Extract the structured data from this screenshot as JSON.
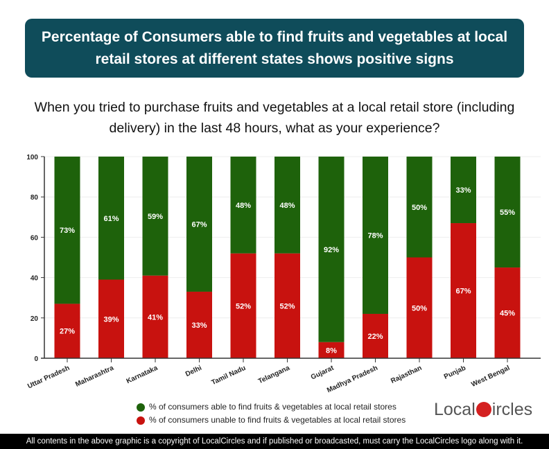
{
  "title": "Percentage of Consumers able to find fruits and vegetables at local retail stores at different states shows positive signs",
  "question": "When you tried to purchase fruits and vegetables at a local retail store (including delivery) in the last 48 hours, what as your experience?",
  "chart_data": {
    "type": "bar",
    "stacked": true,
    "categories": [
      "Uttar Pradesh",
      "Maharashtra",
      "Karnataka",
      "Delhi",
      "Tamil Nadu",
      "Telangana",
      "Gujarat",
      "Madhya Pradesh",
      "Rajasthan",
      "Punjab",
      "West Bengal"
    ],
    "series": [
      {
        "name": "% of consumers unable to find fruits & vegetables at local retail stores",
        "color": "#c8120f",
        "values": [
          27,
          39,
          41,
          33,
          52,
          52,
          8,
          22,
          50,
          67,
          45
        ]
      },
      {
        "name": "% of consumers able to find fruits & vegetables at local retail stores",
        "color": "#1e620b",
        "values": [
          73,
          61,
          59,
          67,
          48,
          48,
          92,
          78,
          50,
          33,
          55
        ]
      }
    ],
    "ylim": [
      0,
      100
    ],
    "yticks": [
      0,
      20,
      40,
      60,
      80,
      100
    ],
    "grid": true,
    "legend": "bottom"
  },
  "legend": {
    "able": "% of consumers able to find fruits & vegetables at local retail stores",
    "unable": "% of consumers unable to find fruits & vegetables at local retail stores"
  },
  "logo": {
    "text": "LocalCircles"
  },
  "footer": "All contents in the above graphic is a copyright of LocalCircles and if published or broadcasted, must carry the LocalCircles logo along with it."
}
